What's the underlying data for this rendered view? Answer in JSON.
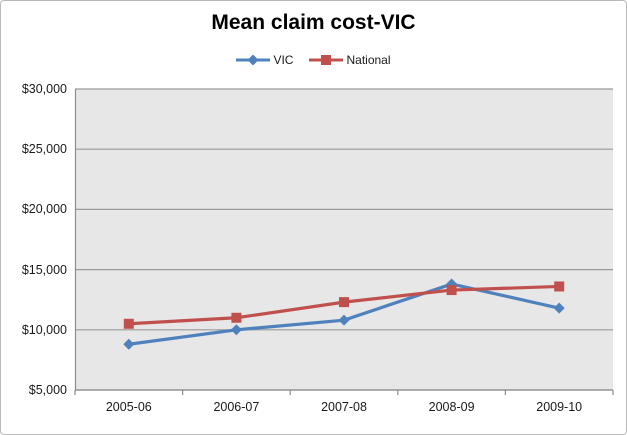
{
  "chart_data": {
    "type": "line",
    "title": "Mean claim cost-VIC",
    "categories": [
      "2005-06",
      "2006-07",
      "2007-08",
      "2008-09",
      "2009-10"
    ],
    "series": [
      {
        "name": "VIC",
        "color": "#4F81BD",
        "marker": "diamond",
        "values": [
          8800,
          10000,
          10800,
          13800,
          11800
        ]
      },
      {
        "name": "National",
        "color": "#C0504D",
        "marker": "square",
        "values": [
          10500,
          11000,
          12300,
          13300,
          13600
        ]
      }
    ],
    "ylim": [
      5000,
      30000
    ],
    "ytick_step": 5000,
    "ytick_labels": [
      "$5,000",
      "$10,000",
      "$15,000",
      "$20,000",
      "$25,000",
      "$30,000"
    ],
    "xlabel": "",
    "ylabel": "",
    "grid": true,
    "legend_position": "top",
    "colors": {
      "plot_bg": "#E7E7E7",
      "gridline": "#9A9A9A",
      "axis": "#8C8C8C",
      "label": "#1A1A1A",
      "frame_border": "#B9B9B9"
    }
  }
}
